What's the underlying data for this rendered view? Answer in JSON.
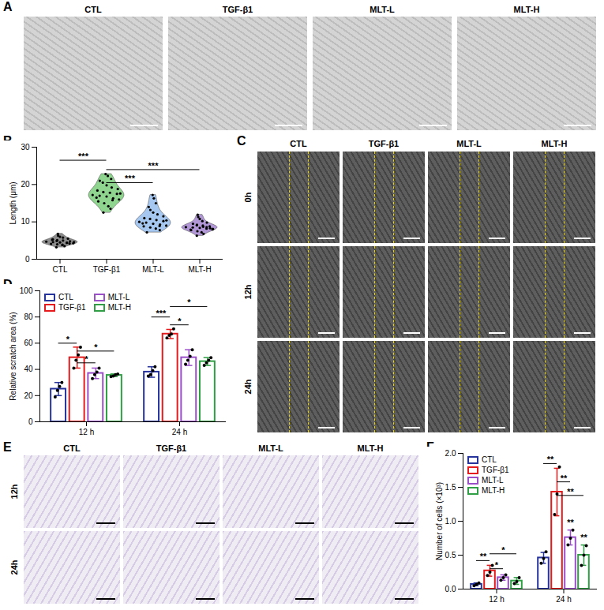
{
  "chart_data": [
    {
      "type": "violin",
      "panel": "B",
      "ylabel": "Length (μm)",
      "categories": [
        "CTL",
        "TGF-β1",
        "MLT-L",
        "MLT-H"
      ],
      "colors": [
        "#8c8c8c",
        "#8fd48f",
        "#a6c8f0",
        "#b197d6"
      ],
      "values": [
        [
          3.2,
          3.5,
          3.8,
          4.0,
          4.1,
          4.3,
          4.4,
          4.5,
          4.6,
          4.7,
          4.8,
          5.0,
          5.1,
          5.3,
          5.5,
          5.8,
          6.0,
          6.3,
          6.8,
          4.2,
          3.9,
          4.9,
          5.2,
          4.6,
          4.4
        ],
        [
          12.5,
          13.5,
          14.2,
          15.0,
          15.5,
          16.0,
          16.3,
          16.8,
          17.0,
          17.2,
          17.5,
          17.8,
          18.0,
          18.4,
          18.8,
          19.2,
          19.8,
          20.5,
          21.0,
          21.5,
          22.3,
          22.8,
          16.5,
          17.6,
          15.8
        ],
        [
          7.2,
          7.8,
          8.2,
          8.5,
          8.8,
          9.0,
          9.3,
          9.5,
          9.8,
          10.0,
          10.2,
          10.5,
          10.8,
          11.0,
          11.5,
          12.0,
          12.5,
          13.2,
          14.0,
          15.0,
          16.3,
          17.2,
          9.6,
          10.4,
          8.9
        ],
        [
          6.3,
          6.8,
          7.2,
          7.5,
          7.8,
          8.0,
          8.2,
          8.4,
          8.5,
          8.6,
          8.8,
          9.0,
          9.2,
          9.5,
          9.8,
          10.2,
          10.8,
          11.3,
          11.9,
          8.3,
          8.7,
          9.1,
          7.9,
          8.1,
          8.6
        ]
      ],
      "ylim": [
        0,
        30
      ],
      "yticks": [
        0,
        10,
        20,
        30
      ],
      "annotations": [
        {
          "from": "CTL",
          "to": "TGF-β1",
          "y": 26.5,
          "text": "***"
        },
        {
          "from": "TGF-β1",
          "to": "MLT-H",
          "y": 24,
          "text": "***"
        },
        {
          "from": "TGF-β1",
          "to": "MLT-L",
          "y": 20.5,
          "text": "***"
        }
      ]
    },
    {
      "type": "bar",
      "panel": "D",
      "ylabel": "Relative scratch area (%)",
      "categories": [
        "12 h",
        "24 h"
      ],
      "legend": "top-left",
      "series": [
        {
          "name": "CTL",
          "color": "#26339b",
          "values": [
            25,
            38
          ],
          "errors": [
            5,
            4
          ],
          "points": [
            [
              19,
              24,
              27,
              30
            ],
            [
              35,
              36,
              39,
              42
            ]
          ]
        },
        {
          "name": "TGF-β1",
          "color": "#e41a1c",
          "values": [
            49,
            67
          ],
          "errors": [
            8,
            3.5
          ],
          "points": [
            [
              41,
              47,
              51,
              57
            ],
            [
              64,
              66,
              67,
              71
            ]
          ]
        },
        {
          "name": "MLT-L",
          "color": "#9a4fc8",
          "values": [
            37,
            49
          ],
          "errors": [
            4,
            6
          ],
          "points": [
            [
              33,
              36,
              38,
              41
            ],
            [
              44,
              47,
              50,
              55
            ]
          ]
        },
        {
          "name": "MLT-H",
          "color": "#2f9e44",
          "values": [
            35.5,
            46
          ],
          "errors": [
            1,
            3
          ],
          "points": [
            [
              34.5,
              35,
              36,
              36.5
            ],
            [
              43,
              45,
              47,
              49
            ]
          ]
        }
      ],
      "ylim": [
        0,
        100
      ],
      "yticks": [
        0,
        20,
        40,
        60,
        80,
        100
      ],
      "annotations": [
        {
          "group": "12 h",
          "from": "CTL",
          "to": "TGF-β1",
          "y": 60,
          "text": "*"
        },
        {
          "group": "12 h",
          "from": "TGF-β1",
          "to": "MLT-H",
          "y": 54,
          "text": "*"
        },
        {
          "group": "12 h",
          "from": "TGF-β1",
          "to": "MLT-L",
          "y": 45,
          "text": "*"
        },
        {
          "group": "24 h",
          "from": "CTL",
          "to": "TGF-β1",
          "y": 80,
          "text": "***"
        },
        {
          "group": "24 h",
          "from": "TGF-β1",
          "to": "MLT-L",
          "y": 74,
          "text": "*"
        },
        {
          "group": "24 h",
          "from": "TGF-β1",
          "to": "MLT-H",
          "y": 88,
          "text": "*"
        }
      ]
    },
    {
      "type": "bar",
      "panel": "F",
      "ylabel": "Number of cells (×10³)",
      "categories": [
        "12 h",
        "24 h"
      ],
      "legend": "top-left",
      "series": [
        {
          "name": "CTL",
          "color": "#26339b",
          "values": [
            0.07,
            0.46
          ],
          "errors": [
            0.02,
            0.08
          ],
          "points": [
            [
              0.05,
              0.07,
              0.09
            ],
            [
              0.38,
              0.45,
              0.55
            ]
          ]
        },
        {
          "name": "TGF-β1",
          "color": "#e41a1c",
          "values": [
            0.27,
            1.43
          ],
          "errors": [
            0.08,
            0.35
          ],
          "points": [
            [
              0.2,
              0.25,
              0.35
            ],
            [
              1.1,
              1.4,
              1.8
            ]
          ]
        },
        {
          "name": "MLT-L",
          "color": "#9a4fc8",
          "values": [
            0.17,
            0.76
          ],
          "errors": [
            0.04,
            0.11
          ],
          "points": [
            [
              0.13,
              0.17,
              0.21
            ],
            [
              0.65,
              0.75,
              0.87
            ]
          ]
        },
        {
          "name": "MLT-H",
          "color": "#2f9e44",
          "values": [
            0.12,
            0.5
          ],
          "errors": [
            0.05,
            0.15
          ],
          "points": [
            [
              0.08,
              0.11,
              0.17
            ],
            [
              0.35,
              0.5,
              0.64
            ]
          ]
        }
      ],
      "ylim": [
        0,
        2
      ],
      "yticks": [
        {
          "value": 0,
          "label": "0.0"
        },
        {
          "value": 0.5,
          "label": "0.5"
        },
        {
          "value": 1,
          "label": "1.0"
        },
        {
          "value": 1.5,
          "label": "1.5"
        },
        {
          "value": 2,
          "label": "2.0"
        }
      ],
      "annotations": [
        {
          "group": "12 h",
          "from": "CTL",
          "to": "TGF-β1",
          "y": 0.42,
          "text": "**"
        },
        {
          "group": "12 h",
          "from": "TGF-β1",
          "to": "MLT-L",
          "y": 0.3,
          "text": "*"
        },
        {
          "group": "12 h",
          "from": "TGF-β1",
          "to": "MLT-H",
          "y": 0.52,
          "text": "*"
        },
        {
          "group": "24 h",
          "from": "CTL",
          "to": "TGF-β1",
          "y": 1.85,
          "text": "**"
        },
        {
          "group": "24 h",
          "from": "TGF-β1",
          "to": "MLT-L",
          "y": 1.58,
          "text": "**"
        },
        {
          "group": "24 h",
          "from": "TGF-β1",
          "to": "MLT-H",
          "y": 1.38,
          "text": "**"
        },
        {
          "group": "24 h",
          "at": "MLT-L",
          "y": 0.92,
          "text": "**"
        },
        {
          "group": "24 h",
          "at": "MLT-H",
          "y": 0.7,
          "text": "**"
        }
      ]
    }
  ],
  "image_panels": [
    {
      "panel": "A",
      "columns": [
        "CTL",
        "TGF-β1",
        "MLT-L",
        "MLT-H"
      ]
    },
    {
      "panel": "C",
      "columns": [
        "CTL",
        "TGF-β1",
        "MLT-L",
        "MLT-H"
      ],
      "rows": [
        "0h",
        "12h",
        "24h"
      ]
    },
    {
      "panel": "E",
      "columns": [
        "CTL",
        "TGF-β1",
        "MLT-L",
        "MLT-H"
      ],
      "rows": [
        "12h",
        "24h"
      ]
    }
  ]
}
